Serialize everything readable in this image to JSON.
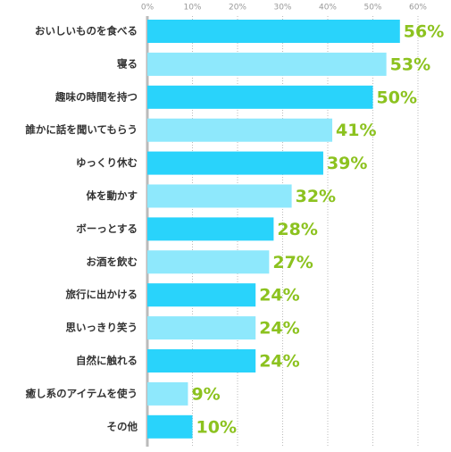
{
  "chart_data": {
    "type": "hbar",
    "categories": [
      "おいしいものを食べる",
      "寝る",
      "趣味の時間を持つ",
      "誰かに話を聞いてもらう",
      "ゆっくり休む",
      "体を動かす",
      "ボーっとする",
      "お酒を飲む",
      "旅行に出かける",
      "思いっきり笑う",
      "自然に触れる",
      "癒し系のアイテムを使う",
      "その他"
    ],
    "values": [
      56,
      53,
      50,
      41,
      39,
      32,
      28,
      27,
      24,
      24,
      24,
      9,
      10
    ],
    "value_labels": [
      "56%",
      "53%",
      "50%",
      "41%",
      "39%",
      "32%",
      "28%",
      "27%",
      "24%",
      "24%",
      "24%",
      "9%",
      "10%"
    ],
    "colors": [
      "#29d3fb",
      "#8ee8fc",
      "#29d3fb",
      "#8ee8fc",
      "#29d3fb",
      "#8ee8fc",
      "#29d3fb",
      "#8ee8fc",
      "#29d3fb",
      "#8ee8fc",
      "#29d3fb",
      "#8ee8fc",
      "#29d3fb"
    ],
    "label_color": "#8cc21f",
    "xlim": [
      0,
      60
    ],
    "xticks": [
      {
        "value": 0,
        "label": "0%"
      },
      {
        "value": 10,
        "label": "10%"
      },
      {
        "value": 20,
        "label": "20%"
      },
      {
        "value": 30,
        "label": "30%"
      },
      {
        "value": 40,
        "label": "40%"
      },
      {
        "value": 50,
        "label": "50%"
      },
      {
        "value": 60,
        "label": "60%"
      }
    ],
    "grid": true
  }
}
